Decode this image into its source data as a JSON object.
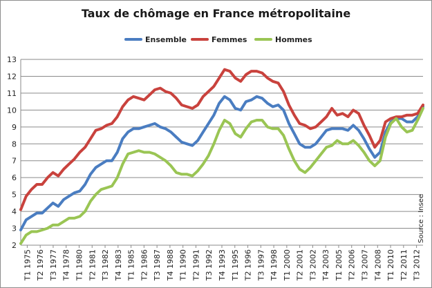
{
  "chart_data": {
    "type": "line",
    "title": "Taux de chômage en France métropolitaine",
    "xlabel": "",
    "ylabel": "",
    "ylim": [
      2,
      13
    ],
    "yticks": [
      2,
      3,
      4,
      5,
      6,
      7,
      8,
      9,
      10,
      11,
      12,
      13
    ],
    "grid": true,
    "legend": "top",
    "source": "Source : Insee",
    "x_tick_labels": [
      "T1 1975",
      "T2 1976",
      "T3 1977",
      "T4 1978",
      "T1 1980",
      "T2 1981",
      "T3 1982",
      "T4 1983",
      "T1 1985",
      "T2 1986",
      "T3 1987",
      "T4 1988",
      "T1 1990",
      "T2 1991",
      "T3 1992",
      "T4 1993",
      "T1 1995",
      "T2 1996",
      "T3 1997",
      "T4 1998",
      "T1 2000",
      "T2 2001",
      "T3 2002",
      "T4 2003",
      "T1 2005",
      "T2 2006",
      "T3 2007",
      "T4 2008",
      "T1 2010",
      "T2 2011",
      "T3 2012"
    ],
    "x_start": 1975.0,
    "x_end": 2012.5,
    "series": [
      {
        "name": "Ensemble",
        "color": "#4a7dc1",
        "points": [
          [
            1975.0,
            2.9
          ],
          [
            1975.5,
            3.5
          ],
          [
            1976.0,
            3.7
          ],
          [
            1976.5,
            3.9
          ],
          [
            1977.0,
            3.9
          ],
          [
            1977.5,
            4.2
          ],
          [
            1978.0,
            4.5
          ],
          [
            1978.5,
            4.3
          ],
          [
            1979.0,
            4.7
          ],
          [
            1979.5,
            4.9
          ],
          [
            1980.0,
            5.1
          ],
          [
            1980.5,
            5.2
          ],
          [
            1981.0,
            5.6
          ],
          [
            1981.5,
            6.2
          ],
          [
            1982.0,
            6.6
          ],
          [
            1982.5,
            6.8
          ],
          [
            1983.0,
            7.0
          ],
          [
            1983.5,
            7.0
          ],
          [
            1984.0,
            7.5
          ],
          [
            1984.5,
            8.3
          ],
          [
            1985.0,
            8.7
          ],
          [
            1985.5,
            8.9
          ],
          [
            1986.0,
            8.9
          ],
          [
            1986.5,
            9.0
          ],
          [
            1987.0,
            9.1
          ],
          [
            1987.5,
            9.2
          ],
          [
            1988.0,
            9.0
          ],
          [
            1988.5,
            8.9
          ],
          [
            1989.0,
            8.7
          ],
          [
            1989.5,
            8.4
          ],
          [
            1990.0,
            8.1
          ],
          [
            1990.5,
            8.0
          ],
          [
            1991.0,
            7.9
          ],
          [
            1991.5,
            8.2
          ],
          [
            1992.0,
            8.7
          ],
          [
            1992.5,
            9.2
          ],
          [
            1993.0,
            9.7
          ],
          [
            1993.5,
            10.4
          ],
          [
            1994.0,
            10.8
          ],
          [
            1994.5,
            10.6
          ],
          [
            1995.0,
            10.1
          ],
          [
            1995.5,
            10.0
          ],
          [
            1996.0,
            10.5
          ],
          [
            1996.5,
            10.6
          ],
          [
            1997.0,
            10.8
          ],
          [
            1997.5,
            10.7
          ],
          [
            1998.0,
            10.4
          ],
          [
            1998.5,
            10.2
          ],
          [
            1999.0,
            10.3
          ],
          [
            1999.5,
            10.0
          ],
          [
            2000.0,
            9.2
          ],
          [
            2000.5,
            8.6
          ],
          [
            2001.0,
            8.0
          ],
          [
            2001.5,
            7.8
          ],
          [
            2002.0,
            7.8
          ],
          [
            2002.5,
            8.0
          ],
          [
            2003.0,
            8.4
          ],
          [
            2003.5,
            8.8
          ],
          [
            2004.0,
            8.9
          ],
          [
            2004.5,
            8.9
          ],
          [
            2005.0,
            8.9
          ],
          [
            2005.5,
            8.8
          ],
          [
            2006.0,
            9.1
          ],
          [
            2006.5,
            8.8
          ],
          [
            2007.0,
            8.3
          ],
          [
            2007.5,
            7.7
          ],
          [
            2008.0,
            7.2
          ],
          [
            2008.5,
            7.5
          ],
          [
            2009.0,
            8.7
          ],
          [
            2009.5,
            9.3
          ],
          [
            2010.0,
            9.5
          ],
          [
            2010.5,
            9.5
          ],
          [
            2011.0,
            9.3
          ],
          [
            2011.5,
            9.3
          ],
          [
            2012.0,
            9.6
          ],
          [
            2012.5,
            10.2
          ]
        ]
      },
      {
        "name": "Femmes",
        "color": "#c9423d",
        "points": [
          [
            1975.0,
            4.1
          ],
          [
            1975.5,
            4.9
          ],
          [
            1976.0,
            5.3
          ],
          [
            1976.5,
            5.6
          ],
          [
            1977.0,
            5.6
          ],
          [
            1977.5,
            6.0
          ],
          [
            1978.0,
            6.3
          ],
          [
            1978.5,
            6.1
          ],
          [
            1979.0,
            6.5
          ],
          [
            1979.5,
            6.8
          ],
          [
            1980.0,
            7.1
          ],
          [
            1980.5,
            7.5
          ],
          [
            1981.0,
            7.8
          ],
          [
            1981.5,
            8.3
          ],
          [
            1982.0,
            8.8
          ],
          [
            1982.5,
            8.9
          ],
          [
            1983.0,
            9.1
          ],
          [
            1983.5,
            9.2
          ],
          [
            1984.0,
            9.6
          ],
          [
            1984.5,
            10.2
          ],
          [
            1985.0,
            10.6
          ],
          [
            1985.5,
            10.8
          ],
          [
            1986.0,
            10.7
          ],
          [
            1986.5,
            10.6
          ],
          [
            1987.0,
            10.9
          ],
          [
            1987.5,
            11.2
          ],
          [
            1988.0,
            11.3
          ],
          [
            1988.5,
            11.1
          ],
          [
            1989.0,
            11.0
          ],
          [
            1989.5,
            10.7
          ],
          [
            1990.0,
            10.3
          ],
          [
            1990.5,
            10.2
          ],
          [
            1991.0,
            10.1
          ],
          [
            1991.5,
            10.3
          ],
          [
            1992.0,
            10.8
          ],
          [
            1992.5,
            11.1
          ],
          [
            1993.0,
            11.4
          ],
          [
            1993.5,
            11.9
          ],
          [
            1994.0,
            12.4
          ],
          [
            1994.5,
            12.3
          ],
          [
            1995.0,
            11.9
          ],
          [
            1995.5,
            11.7
          ],
          [
            1996.0,
            12.1
          ],
          [
            1996.5,
            12.3
          ],
          [
            1997.0,
            12.3
          ],
          [
            1997.5,
            12.2
          ],
          [
            1998.0,
            11.9
          ],
          [
            1998.5,
            11.7
          ],
          [
            1999.0,
            11.6
          ],
          [
            1999.5,
            11.1
          ],
          [
            2000.0,
            10.3
          ],
          [
            2000.5,
            9.7
          ],
          [
            2001.0,
            9.2
          ],
          [
            2001.5,
            9.1
          ],
          [
            2002.0,
            8.9
          ],
          [
            2002.5,
            9.0
          ],
          [
            2003.0,
            9.3
          ],
          [
            2003.5,
            9.6
          ],
          [
            2004.0,
            10.1
          ],
          [
            2004.5,
            9.7
          ],
          [
            2005.0,
            9.8
          ],
          [
            2005.5,
            9.6
          ],
          [
            2006.0,
            10.0
          ],
          [
            2006.5,
            9.8
          ],
          [
            2007.0,
            9.1
          ],
          [
            2007.5,
            8.5
          ],
          [
            2008.0,
            7.8
          ],
          [
            2008.5,
            8.2
          ],
          [
            2009.0,
            9.3
          ],
          [
            2009.5,
            9.5
          ],
          [
            2010.0,
            9.6
          ],
          [
            2010.5,
            9.6
          ],
          [
            2011.0,
            9.7
          ],
          [
            2011.5,
            9.7
          ],
          [
            2012.0,
            9.8
          ],
          [
            2012.5,
            10.3
          ]
        ]
      },
      {
        "name": "Hommes",
        "color": "#9ac554",
        "points": [
          [
            1975.0,
            2.1
          ],
          [
            1975.5,
            2.6
          ],
          [
            1976.0,
            2.8
          ],
          [
            1976.5,
            2.8
          ],
          [
            1977.0,
            2.9
          ],
          [
            1977.5,
            3.0
          ],
          [
            1978.0,
            3.2
          ],
          [
            1978.5,
            3.2
          ],
          [
            1979.0,
            3.4
          ],
          [
            1979.5,
            3.6
          ],
          [
            1980.0,
            3.6
          ],
          [
            1980.5,
            3.7
          ],
          [
            1981.0,
            4.0
          ],
          [
            1981.5,
            4.6
          ],
          [
            1982.0,
            5.0
          ],
          [
            1982.5,
            5.3
          ],
          [
            1983.0,
            5.4
          ],
          [
            1983.5,
            5.5
          ],
          [
            1984.0,
            6.0
          ],
          [
            1984.5,
            6.8
          ],
          [
            1985.0,
            7.4
          ],
          [
            1985.5,
            7.5
          ],
          [
            1986.0,
            7.6
          ],
          [
            1986.5,
            7.5
          ],
          [
            1987.0,
            7.5
          ],
          [
            1987.5,
            7.4
          ],
          [
            1988.0,
            7.2
          ],
          [
            1988.5,
            7.0
          ],
          [
            1989.0,
            6.7
          ],
          [
            1989.5,
            6.3
          ],
          [
            1990.0,
            6.2
          ],
          [
            1990.5,
            6.2
          ],
          [
            1991.0,
            6.1
          ],
          [
            1991.5,
            6.4
          ],
          [
            1992.0,
            6.8
          ],
          [
            1992.5,
            7.3
          ],
          [
            1993.0,
            8.0
          ],
          [
            1993.5,
            8.8
          ],
          [
            1994.0,
            9.4
          ],
          [
            1994.5,
            9.2
          ],
          [
            1995.0,
            8.6
          ],
          [
            1995.5,
            8.4
          ],
          [
            1996.0,
            8.9
          ],
          [
            1996.5,
            9.3
          ],
          [
            1997.0,
            9.4
          ],
          [
            1997.5,
            9.4
          ],
          [
            1998.0,
            9.0
          ],
          [
            1998.5,
            8.9
          ],
          [
            1999.0,
            8.9
          ],
          [
            1999.5,
            8.5
          ],
          [
            2000.0,
            7.7
          ],
          [
            2000.5,
            7.0
          ],
          [
            2001.0,
            6.5
          ],
          [
            2001.5,
            6.3
          ],
          [
            2002.0,
            6.6
          ],
          [
            2002.5,
            7.0
          ],
          [
            2003.0,
            7.4
          ],
          [
            2003.5,
            7.8
          ],
          [
            2004.0,
            7.9
          ],
          [
            2004.5,
            8.2
          ],
          [
            2005.0,
            8.0
          ],
          [
            2005.5,
            8.0
          ],
          [
            2006.0,
            8.2
          ],
          [
            2006.5,
            7.9
          ],
          [
            2007.0,
            7.5
          ],
          [
            2007.5,
            7.0
          ],
          [
            2008.0,
            6.7
          ],
          [
            2008.5,
            7.0
          ],
          [
            2009.0,
            8.4
          ],
          [
            2009.5,
            9.2
          ],
          [
            2010.0,
            9.5
          ],
          [
            2010.5,
            9.0
          ],
          [
            2011.0,
            8.7
          ],
          [
            2011.5,
            8.8
          ],
          [
            2012.0,
            9.4
          ],
          [
            2012.5,
            10.1
          ]
        ]
      }
    ]
  }
}
